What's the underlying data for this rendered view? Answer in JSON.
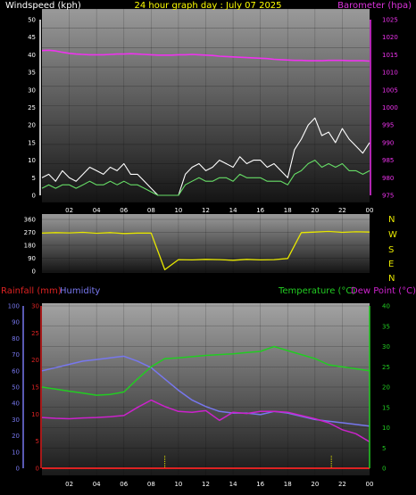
{
  "header": {
    "left": "Windspeed (kph)",
    "center": "24 hour graph day : July 07 2025",
    "right": "Barometer (hpa)"
  },
  "bottom_header": {
    "rain": "Rainfall (mm)",
    "humidity": "Humidity",
    "temp": "Temperature (°C)",
    "dew": "Dew Point (°C)"
  },
  "compass": [
    "N",
    "W",
    "S",
    "E",
    "N"
  ],
  "colors": {
    "wind_gust": "#ffffff",
    "wind_avg": "#66dd66",
    "barometer": "#ee33ee",
    "direction": "#e8e800",
    "humidity": "#7777ee",
    "rainfall": "#dd2222",
    "temperature": "#22cc22",
    "dewpoint": "#cc22cc",
    "header_left": "#ffffff",
    "header_center": "#ffff00",
    "header_right": "#dd33dd"
  },
  "chart_data": [
    {
      "type": "line",
      "xticks": [
        "02",
        "04",
        "06",
        "08",
        "10",
        "12",
        "14",
        "16",
        "18",
        "20",
        "22",
        "00"
      ],
      "x_hours": [
        0,
        0.5,
        1,
        1.5,
        2,
        2.5,
        3,
        3.5,
        4,
        4.5,
        5,
        5.5,
        6,
        6.5,
        7,
        7.5,
        8,
        8.5,
        9,
        9.5,
        10,
        10.5,
        11,
        11.5,
        12,
        12.5,
        13,
        13.5,
        14,
        14.5,
        15,
        15.5,
        16,
        16.5,
        17,
        17.5,
        18,
        18.5,
        19,
        19.5,
        20,
        20.5,
        21,
        21.5,
        22,
        22.5,
        23,
        23.5,
        24
      ],
      "ylim_left": [
        0,
        50
      ],
      "yticks_left": [
        "0",
        "5",
        "10",
        "15",
        "20",
        "25",
        "30",
        "35",
        "40",
        "45",
        "50"
      ],
      "ylim_right": [
        975,
        1025
      ],
      "yticks_right": [
        "975",
        "980",
        "985",
        "990",
        "995",
        "1000",
        "1005",
        "1010",
        "1015",
        "1020",
        "1025"
      ],
      "series": [
        {
          "key": "gust",
          "axis": "left",
          "values": [
            5,
            6,
            4,
            7,
            5,
            4,
            6,
            8,
            7,
            6,
            8,
            7,
            9,
            6,
            6,
            4,
            2,
            0,
            0,
            0,
            0,
            6,
            8,
            9,
            7,
            8,
            10,
            9,
            8,
            11,
            9,
            10,
            10,
            8,
            9,
            7,
            5,
            13,
            16,
            20,
            22,
            17,
            18,
            15,
            19,
            16,
            14,
            12,
            15
          ]
        },
        {
          "key": "avg",
          "axis": "left",
          "values": [
            2,
            3,
            2,
            3,
            3,
            2,
            3,
            4,
            3,
            3,
            4,
            3,
            4,
            3,
            3,
            2,
            1,
            0,
            0,
            0,
            0,
            3,
            4,
            5,
            4,
            4,
            5,
            5,
            4,
            6,
            5,
            5,
            5,
            4,
            4,
            4,
            3,
            6,
            7,
            9,
            10,
            8,
            9,
            8,
            9,
            7,
            7,
            6,
            7
          ]
        },
        {
          "key": "barometer",
          "axis": "right",
          "values": [
            1016.2,
            1016.3,
            1016.1,
            1015.7,
            1015.4,
            1015.2,
            1015.1,
            1015.0,
            1015.0,
            1015.0,
            1015.1,
            1015.2,
            1015.2,
            1015.3,
            1015.2,
            1015.1,
            1015.0,
            1014.9,
            1014.9,
            1014.9,
            1015.0,
            1015.0,
            1015.1,
            1015.0,
            1014.9,
            1014.8,
            1014.6,
            1014.5,
            1014.4,
            1014.3,
            1014.2,
            1014.1,
            1014.0,
            1013.9,
            1013.7,
            1013.6,
            1013.5,
            1013.4,
            1013.4,
            1013.3,
            1013.3,
            1013.3,
            1013.4,
            1013.4,
            1013.4,
            1013.3,
            1013.3,
            1013.3,
            1013.2
          ]
        }
      ]
    },
    {
      "type": "line",
      "ylim": [
        0,
        360
      ],
      "yticks": [
        "0",
        "90",
        "180",
        "270",
        "360"
      ],
      "x_hours": [
        0,
        1,
        2,
        3,
        4,
        5,
        6,
        7,
        8,
        9,
        10,
        11,
        12,
        13,
        14,
        15,
        16,
        17,
        18,
        19,
        20,
        21,
        22,
        23,
        24
      ],
      "series": [
        {
          "key": "direction",
          "values": [
            265,
            268,
            266,
            270,
            264,
            268,
            262,
            265,
            265,
            10,
            80,
            78,
            82,
            80,
            76,
            82,
            78,
            80,
            88,
            268,
            272,
            276,
            270,
            274,
            272
          ]
        }
      ]
    },
    {
      "type": "line",
      "ylim_left": [
        0,
        100
      ],
      "yticks_left": [
        "0",
        "10",
        "20",
        "30",
        "40",
        "50",
        "60",
        "70",
        "80",
        "90",
        "100"
      ],
      "yticks_rain": [
        "0",
        "5",
        "10",
        "15",
        "20",
        "25",
        "30"
      ],
      "ylim_right": [
        0,
        40
      ],
      "yticks_right": [
        "0",
        "5",
        "10",
        "15",
        "20",
        "25",
        "30",
        "35",
        "40"
      ],
      "x_hours": [
        0,
        1,
        2,
        3,
        4,
        5,
        6,
        7,
        8,
        9,
        10,
        11,
        12,
        13,
        14,
        15,
        16,
        17,
        18,
        19,
        20,
        21,
        22,
        23,
        24
      ],
      "series": [
        {
          "key": "humidity",
          "axis": "left",
          "values": [
            60,
            62,
            64,
            66,
            67,
            68,
            69,
            66,
            62,
            55,
            48,
            42,
            38,
            35,
            34,
            34,
            33,
            35,
            34,
            32,
            30,
            29,
            28,
            27,
            26
          ]
        },
        {
          "key": "temperature",
          "axis": "right",
          "values": [
            20,
            19.5,
            19,
            18.5,
            18,
            18.2,
            18.8,
            22,
            25,
            27,
            27.2,
            27.5,
            27.8,
            28,
            28.2,
            28.5,
            28.8,
            30,
            29,
            28,
            27,
            25.5,
            25,
            24.5,
            24
          ]
        },
        {
          "key": "dewpoint",
          "axis": "right",
          "values": [
            12.5,
            12.3,
            12.2,
            12.4,
            12.5,
            12.7,
            13,
            15,
            16.8,
            15.2,
            14,
            13.8,
            14.2,
            11.8,
            13.8,
            13.5,
            14,
            14,
            13.8,
            13,
            12.2,
            11.2,
            9.5,
            8.5,
            6.5
          ]
        },
        {
          "key": "rainfall",
          "axis": "left",
          "values": [
            0,
            0,
            0,
            0,
            0,
            0,
            0,
            0,
            0,
            0,
            0,
            0,
            0,
            0,
            0,
            0,
            0,
            0,
            0,
            0,
            0,
            0,
            0,
            0,
            0
          ]
        }
      ]
    }
  ]
}
